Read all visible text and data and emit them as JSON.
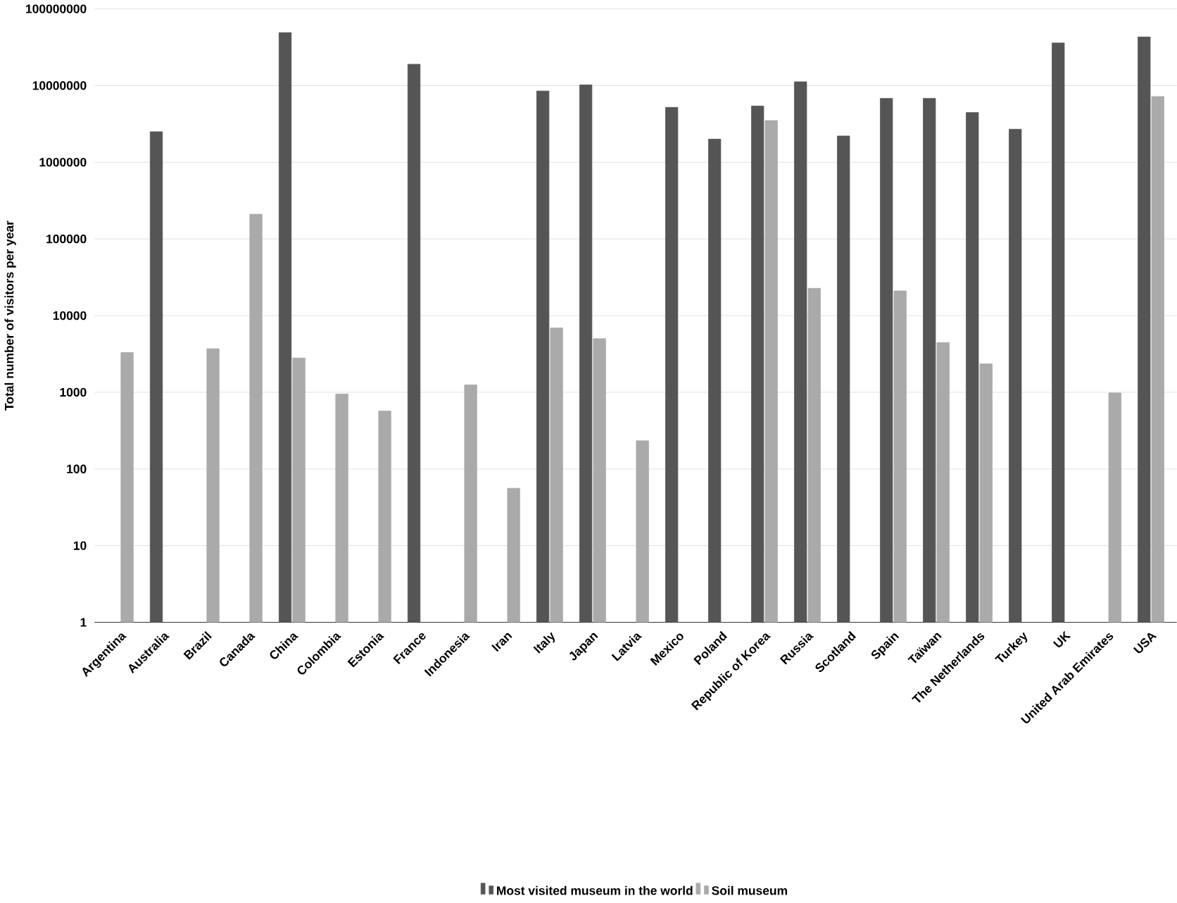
{
  "chart_data": {
    "type": "bar",
    "ylabel": "Total number of visitors per year",
    "categories": [
      "Argentina",
      "Australia",
      "Brazil",
      "Canada",
      "China",
      "Colombia",
      "Estonia",
      "France",
      "Indonesia",
      "Iran",
      "Italy",
      "Japan",
      "Latvia",
      "Mexico",
      "Poland",
      "Republic of Korea",
      "Russia",
      "Scotland",
      "Spain",
      "Taïwan",
      "The Netherlands",
      "Turkey",
      "UK",
      "United Arab Emirates",
      "USA"
    ],
    "series": [
      {
        "name": "Most visited museum in the world",
        "color": "#555555",
        "values": [
          null,
          2500000,
          null,
          null,
          49000000,
          null,
          null,
          19000000,
          null,
          null,
          8500000,
          10200000,
          null,
          5200000,
          2000000,
          5400000,
          11200000,
          2200000,
          6800000,
          6800000,
          4450000,
          2700000,
          36000000,
          null,
          43000000
        ]
      },
      {
        "name": "Soil museum",
        "color": "#aaaaaa",
        "values": [
          3300,
          null,
          3700,
          210000,
          2800,
          950,
          570,
          null,
          1250,
          56,
          6900,
          5000,
          233,
          null,
          null,
          3500000,
          22700,
          null,
          21000,
          4450,
          2350,
          null,
          null,
          980,
          7200000
        ]
      }
    ],
    "log": "y",
    "ylim": [
      1,
      100000000
    ],
    "yticks": [
      1,
      10,
      100,
      1000,
      10000,
      100000,
      1000000,
      10000000,
      100000000
    ],
    "grid": "y",
    "legend": "bottom"
  }
}
